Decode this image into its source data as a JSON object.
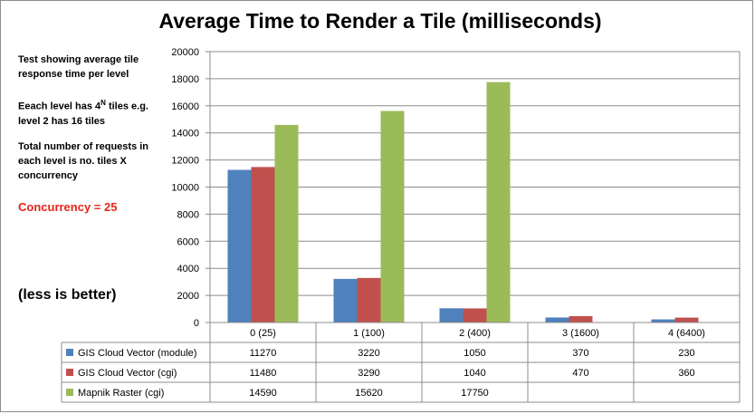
{
  "chart_data": {
    "type": "bar",
    "title": "Average Time to Render a Tile (milliseconds)",
    "categories": [
      "0 (25)",
      "1 (100)",
      "2 (400)",
      "3 (1600)",
      "4  (6400)"
    ],
    "series": [
      {
        "name": "GIS Cloud Vector (module)",
        "color": "#4f81bd",
        "values": [
          11270,
          3220,
          1050,
          370,
          230
        ]
      },
      {
        "name": "GIS Cloud Vector (cgi)",
        "color": "#c0504d",
        "values": [
          11480,
          3290,
          1040,
          470,
          360
        ]
      },
      {
        "name": "Mapnik Raster (cgi)",
        "color": "#9bbb59",
        "values": [
          14590,
          15620,
          17750,
          null,
          null
        ]
      }
    ],
    "ylim": [
      0,
      20000
    ],
    "yticks": [
      "0",
      "2000",
      "4000",
      "6000",
      "8000",
      "10000",
      "12000",
      "14000",
      "16000",
      "18000",
      "20000"
    ],
    "grid": true,
    "legend": "data-table"
  },
  "notes": {
    "line1": "Test  showing average tile response time per level",
    "line2_pre": "Eeach level has 4",
    "line2_sup": "N",
    "line2_post": " tiles e.g. level 2 has 16 tiles",
    "line3": "Total number of requests in each level is no. tiles X concurrency",
    "concurrency": "Concurrency = 25",
    "less_is_better": "(less is better)"
  }
}
